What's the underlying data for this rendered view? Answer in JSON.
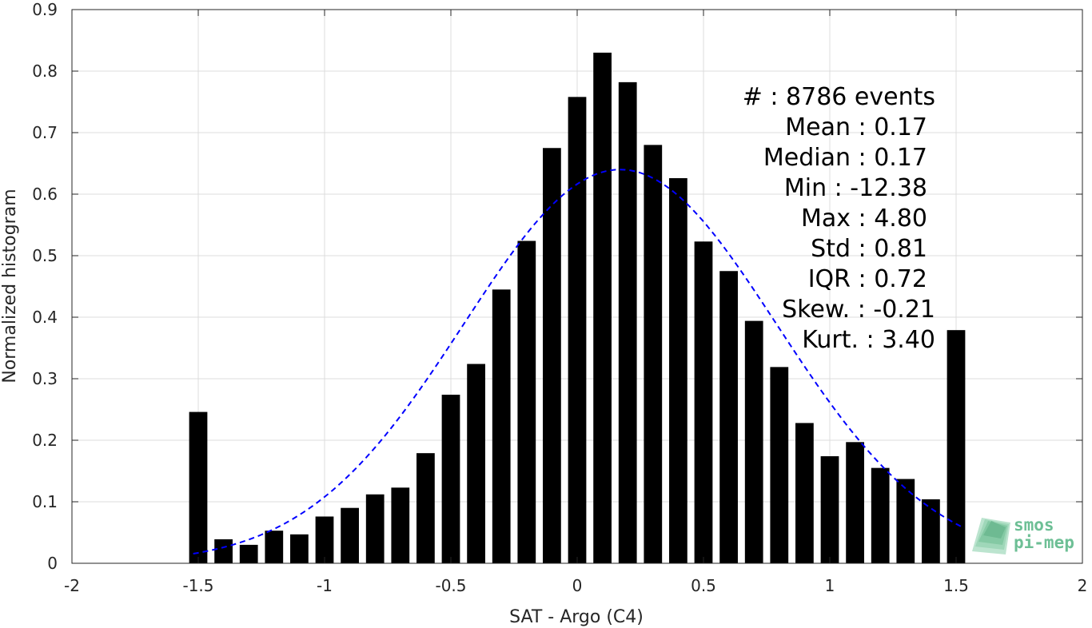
{
  "chart_data": {
    "type": "bar",
    "xlabel": "SAT - Argo (C4)",
    "ylabel": "Normalized histogram",
    "xlim": [
      -2,
      2
    ],
    "ylim": [
      0,
      0.9
    ],
    "x_ticks": [
      "-2",
      "-1.5",
      "-1",
      "-0.5",
      "0",
      "0.5",
      "1",
      "1.5",
      "2"
    ],
    "y_ticks": [
      "0",
      "0.1",
      "0.2",
      "0.3",
      "0.4",
      "0.5",
      "0.6",
      "0.7",
      "0.8",
      "0.9"
    ],
    "grid": true,
    "bar_color": "#000000",
    "series": [
      {
        "x": [
          -1.5,
          -1.4,
          -1.3,
          -1.2,
          -1.1,
          -1.0,
          -0.9,
          -0.8,
          -0.7,
          -0.6,
          -0.5,
          -0.4,
          -0.3,
          -0.2,
          -0.1,
          0.0,
          0.1,
          0.2,
          0.3,
          0.4,
          0.5,
          0.6,
          0.7,
          0.8,
          0.9,
          1.0,
          1.1,
          1.2,
          1.3,
          1.4,
          1.5
        ],
        "values": [
          0.246,
          0.039,
          0.03,
          0.053,
          0.047,
          0.076,
          0.09,
          0.112,
          0.123,
          0.179,
          0.274,
          0.324,
          0.445,
          0.524,
          0.675,
          0.758,
          0.83,
          0.782,
          0.68,
          0.626,
          0.523,
          0.475,
          0.394,
          0.319,
          0.228,
          0.174,
          0.197,
          0.155,
          0.137,
          0.104,
          0.379
        ]
      },
      {
        "type": "line",
        "style": "dashed",
        "color": "#0000ff",
        "mean": 0.17,
        "sigma": 0.62,
        "peak": 0.64,
        "x_range": [
          -1.52,
          1.52
        ]
      }
    ],
    "annotations": [
      {
        "text": "#  : 8786 events"
      },
      {
        "text": "Mean : 0.17"
      },
      {
        "text": "Median : 0.17"
      },
      {
        "text": "Min : -12.38"
      },
      {
        "text": "Max : 4.80"
      },
      {
        "text": "Std : 0.81"
      },
      {
        "text": "IQR : 0.72"
      },
      {
        "text": "Skew. : -0.21"
      },
      {
        "text": "Kurt. : 3.40"
      }
    ]
  },
  "logo": {
    "line1": "smos",
    "line2": "pi-mep",
    "color": "#6dbf95"
  }
}
